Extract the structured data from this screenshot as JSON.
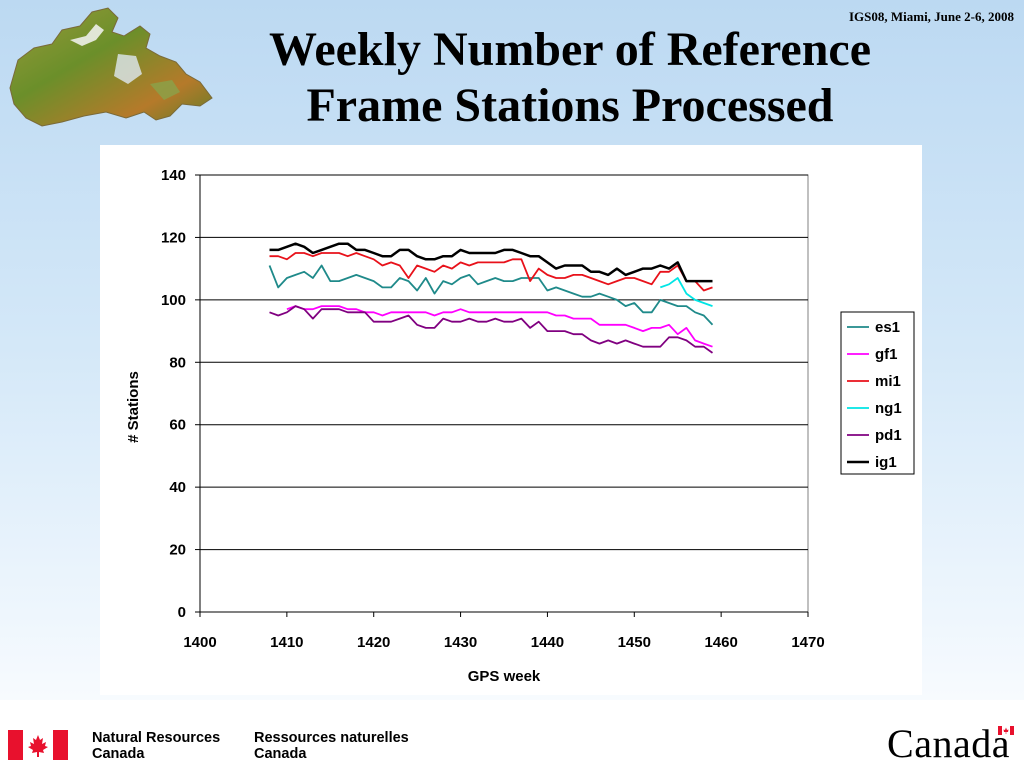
{
  "header": {
    "conference": "IGS08, Miami, June 2-6, 2008",
    "title_line1": "Weekly Number of Reference",
    "title_line2": "Frame Stations Processed"
  },
  "footer": {
    "en_line1": "Natural Resources",
    "en_line2": "Canada",
    "fr_line1": "Ressources naturelles",
    "fr_line2": "Canada",
    "wordmark": "Canada"
  },
  "colors": {
    "flag_red": "#e8112d",
    "background_top": "#bcd9f2",
    "chart_background": "#ffffff"
  },
  "chart_data": {
    "type": "line",
    "title": "",
    "xlabel": "GPS week",
    "ylabel": "# Stations",
    "xlim": [
      1400,
      1470
    ],
    "ylim": [
      0,
      140
    ],
    "xticks": [
      1400,
      1410,
      1420,
      1430,
      1440,
      1450,
      1460,
      1470
    ],
    "yticks": [
      0,
      20,
      40,
      60,
      80,
      100,
      120,
      140
    ],
    "grid": "horizontal",
    "legend": "right",
    "series": [
      {
        "name": "es1",
        "color": "#1f8a8a",
        "x": [
          1408,
          1409,
          1410,
          1411,
          1412,
          1413,
          1414,
          1415,
          1416,
          1417,
          1418,
          1419,
          1420,
          1421,
          1422,
          1423,
          1424,
          1425,
          1426,
          1427,
          1428,
          1429,
          1430,
          1431,
          1432,
          1433,
          1434,
          1435,
          1436,
          1437,
          1438,
          1439,
          1440,
          1441,
          1442,
          1443,
          1444,
          1445,
          1446,
          1447,
          1448,
          1449,
          1450,
          1451,
          1452,
          1453,
          1454,
          1455,
          1456,
          1457,
          1458,
          1459
        ],
        "y": [
          111,
          104,
          107,
          108,
          109,
          107,
          111,
          106,
          106,
          107,
          108,
          107,
          106,
          104,
          104,
          107,
          106,
          103,
          107,
          102,
          106,
          105,
          107,
          108,
          105,
          106,
          107,
          106,
          106,
          107,
          107,
          107,
          103,
          104,
          103,
          102,
          101,
          101,
          102,
          101,
          100,
          98,
          99,
          96,
          96,
          100,
          99,
          98,
          98,
          96,
          95,
          92
        ]
      },
      {
        "name": "gf1",
        "color": "#ff00ff",
        "x": [
          1410,
          1411,
          1412,
          1413,
          1414,
          1415,
          1416,
          1417,
          1418,
          1419,
          1420,
          1421,
          1422,
          1423,
          1424,
          1425,
          1426,
          1427,
          1428,
          1429,
          1430,
          1431,
          1432,
          1433,
          1434,
          1435,
          1436,
          1437,
          1438,
          1439,
          1440,
          1441,
          1442,
          1443,
          1444,
          1445,
          1446,
          1447,
          1448,
          1449,
          1450,
          1451,
          1452,
          1453,
          1454,
          1455,
          1456,
          1457,
          1458,
          1459
        ],
        "y": [
          97,
          98,
          97,
          97,
          98,
          98,
          98,
          97,
          97,
          96,
          96,
          95,
          96,
          96,
          96,
          96,
          96,
          95,
          96,
          96,
          97,
          96,
          96,
          96,
          96,
          96,
          96,
          96,
          96,
          96,
          96,
          95,
          95,
          94,
          94,
          94,
          92,
          92,
          92,
          92,
          91,
          90,
          91,
          91,
          92,
          89,
          91,
          87,
          86,
          85
        ]
      },
      {
        "name": "mi1",
        "color": "#e8111a",
        "x": [
          1408,
          1409,
          1410,
          1411,
          1412,
          1413,
          1414,
          1415,
          1416,
          1417,
          1418,
          1419,
          1420,
          1421,
          1422,
          1423,
          1424,
          1425,
          1426,
          1427,
          1428,
          1429,
          1430,
          1431,
          1432,
          1433,
          1434,
          1435,
          1436,
          1437,
          1438,
          1439,
          1440,
          1441,
          1442,
          1443,
          1444,
          1445,
          1446,
          1447,
          1448,
          1449,
          1450,
          1451,
          1452,
          1453,
          1454,
          1455,
          1456,
          1457,
          1458,
          1459
        ],
        "y": [
          114,
          114,
          113,
          115,
          115,
          114,
          115,
          115,
          115,
          114,
          115,
          114,
          113,
          111,
          112,
          111,
          107,
          111,
          110,
          109,
          111,
          110,
          112,
          111,
          112,
          112,
          112,
          112,
          113,
          113,
          106,
          110,
          108,
          107,
          107,
          108,
          108,
          107,
          106,
          105,
          106,
          107,
          107,
          106,
          105,
          109,
          109,
          111,
          106,
          106,
          103,
          104
        ]
      },
      {
        "name": "ng1",
        "color": "#00e5e5",
        "x": [
          1453,
          1454,
          1455,
          1456,
          1457,
          1458,
          1459
        ],
        "y": [
          104,
          105,
          107,
          102,
          100,
          99,
          98
        ]
      },
      {
        "name": "pd1",
        "color": "#800080",
        "x": [
          1408,
          1409,
          1410,
          1411,
          1412,
          1413,
          1414,
          1415,
          1416,
          1417,
          1418,
          1419,
          1420,
          1421,
          1422,
          1423,
          1424,
          1425,
          1426,
          1427,
          1428,
          1429,
          1430,
          1431,
          1432,
          1433,
          1434,
          1435,
          1436,
          1437,
          1438,
          1439,
          1440,
          1441,
          1442,
          1443,
          1444,
          1445,
          1446,
          1447,
          1448,
          1449,
          1450,
          1451,
          1452,
          1453,
          1454,
          1455,
          1456,
          1457,
          1458,
          1459
        ],
        "y": [
          96,
          95,
          96,
          98,
          97,
          94,
          97,
          97,
          97,
          96,
          96,
          96,
          93,
          93,
          93,
          94,
          95,
          92,
          91,
          91,
          94,
          93,
          93,
          94,
          93,
          93,
          94,
          93,
          93,
          94,
          91,
          93,
          90,
          90,
          90,
          89,
          89,
          87,
          86,
          87,
          86,
          87,
          86,
          85,
          85,
          85,
          88,
          88,
          87,
          85,
          85,
          83
        ]
      },
      {
        "name": "ig1",
        "color": "#000000",
        "x": [
          1408,
          1409,
          1410,
          1411,
          1412,
          1413,
          1414,
          1415,
          1416,
          1417,
          1418,
          1419,
          1420,
          1421,
          1422,
          1423,
          1424,
          1425,
          1426,
          1427,
          1428,
          1429,
          1430,
          1431,
          1432,
          1433,
          1434,
          1435,
          1436,
          1437,
          1438,
          1439,
          1440,
          1441,
          1442,
          1443,
          1444,
          1445,
          1446,
          1447,
          1448,
          1449,
          1450,
          1451,
          1452,
          1453,
          1454,
          1455,
          1456,
          1457,
          1458,
          1459
        ],
        "y": [
          116,
          116,
          117,
          118,
          117,
          115,
          116,
          117,
          118,
          118,
          116,
          116,
          115,
          114,
          114,
          116,
          116,
          114,
          113,
          113,
          114,
          114,
          116,
          115,
          115,
          115,
          115,
          116,
          116,
          115,
          114,
          114,
          112,
          110,
          111,
          111,
          111,
          109,
          109,
          108,
          110,
          108,
          109,
          110,
          110,
          111,
          110,
          112,
          106,
          106,
          106,
          106
        ]
      }
    ]
  }
}
